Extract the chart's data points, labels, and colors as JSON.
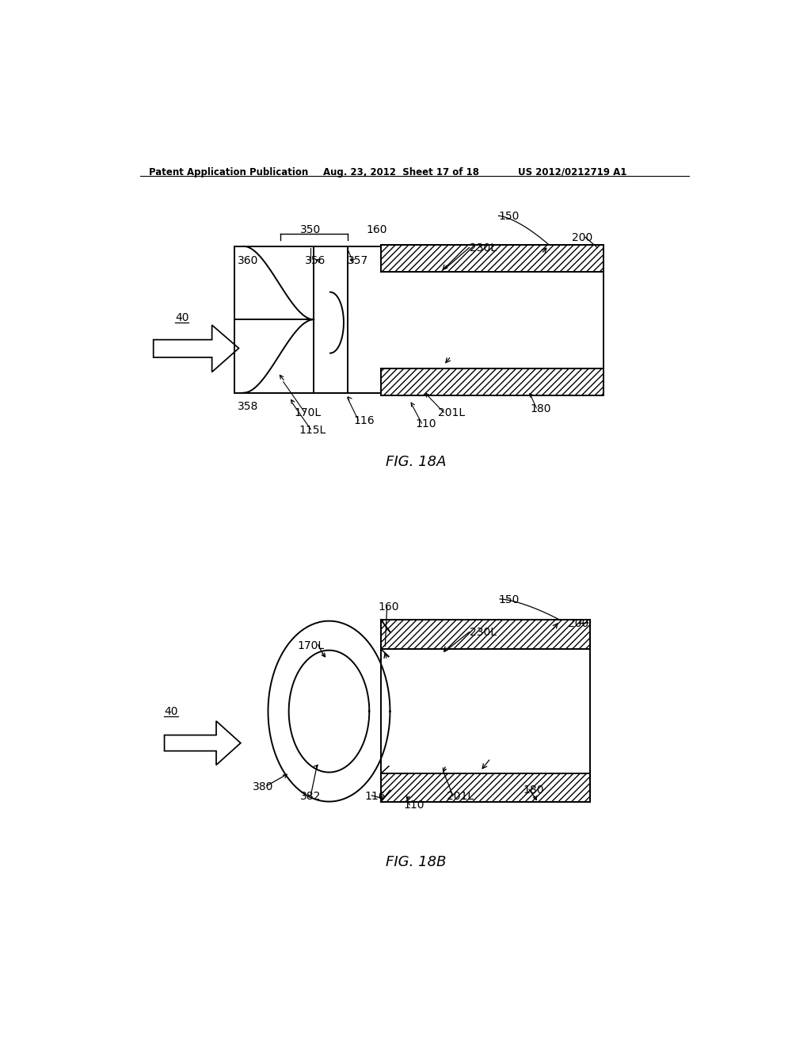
{
  "bg_color": "#ffffff",
  "header_text": "Patent Application Publication",
  "header_date": "Aug. 23, 2012  Sheet 17 of 18",
  "header_patent": "US 2012/0212719 A1",
  "fig_a_title": "FIG. 18A",
  "fig_b_title": "FIG. 18B",
  "lc": "#000000",
  "lw": 1.4,
  "fs": 10
}
